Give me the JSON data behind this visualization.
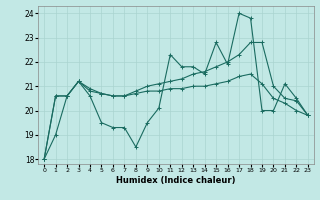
{
  "xlabel": "Humidex (Indice chaleur)",
  "bg_color": "#c2e8e5",
  "grid_color": "#aad4d0",
  "line_color": "#1a6b60",
  "xlim": [
    -0.5,
    23.5
  ],
  "ylim": [
    17.8,
    24.3
  ],
  "yticks": [
    18,
    19,
    20,
    21,
    22,
    23,
    24
  ],
  "xticks": [
    0,
    1,
    2,
    3,
    4,
    5,
    6,
    7,
    8,
    9,
    10,
    11,
    12,
    13,
    14,
    15,
    16,
    17,
    18,
    19,
    20,
    21,
    22,
    23
  ],
  "series": [
    [
      18.0,
      19.0,
      20.6,
      21.2,
      20.6,
      19.5,
      19.3,
      19.3,
      18.5,
      19.5,
      20.1,
      22.3,
      21.8,
      21.8,
      21.5,
      22.8,
      21.9,
      24.0,
      23.8,
      20.0,
      20.0,
      21.1,
      20.5,
      19.8
    ],
    [
      18.0,
      20.6,
      20.6,
      21.2,
      20.9,
      20.7,
      20.6,
      20.6,
      20.8,
      21.0,
      21.1,
      21.2,
      21.3,
      21.5,
      21.6,
      21.8,
      22.0,
      22.3,
      22.8,
      22.8,
      21.0,
      20.5,
      20.4,
      19.8
    ],
    [
      18.0,
      20.6,
      20.6,
      21.2,
      20.8,
      20.7,
      20.6,
      20.6,
      20.7,
      20.8,
      20.8,
      20.9,
      20.9,
      21.0,
      21.0,
      21.1,
      21.2,
      21.4,
      21.5,
      21.1,
      20.5,
      20.3,
      20.0,
      19.8
    ]
  ]
}
